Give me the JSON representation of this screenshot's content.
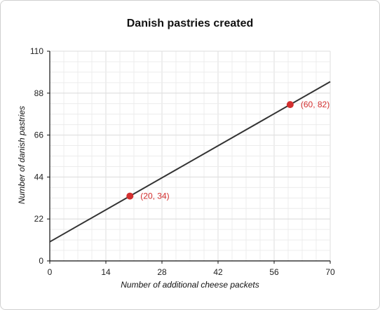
{
  "chart_data": {
    "type": "line",
    "title": "Danish pastries created",
    "xlabel": "Number of additional cheese packets",
    "ylabel": "Number of danish pastries",
    "xlim": [
      0,
      70
    ],
    "ylim": [
      0,
      110
    ],
    "x_ticks": [
      0,
      14,
      28,
      42,
      56,
      70
    ],
    "y_ticks": [
      0,
      22,
      44,
      66,
      88,
      110
    ],
    "grid": true,
    "series": [
      {
        "x": [
          0,
          70
        ],
        "y": [
          10,
          94
        ],
        "color": "#333333"
      }
    ],
    "points": [
      {
        "x": 20,
        "y": 34,
        "label": "(20, 34)"
      },
      {
        "x": 60,
        "y": 82,
        "label": "(60, 82)"
      }
    ],
    "point_color": "#d32f2f"
  }
}
